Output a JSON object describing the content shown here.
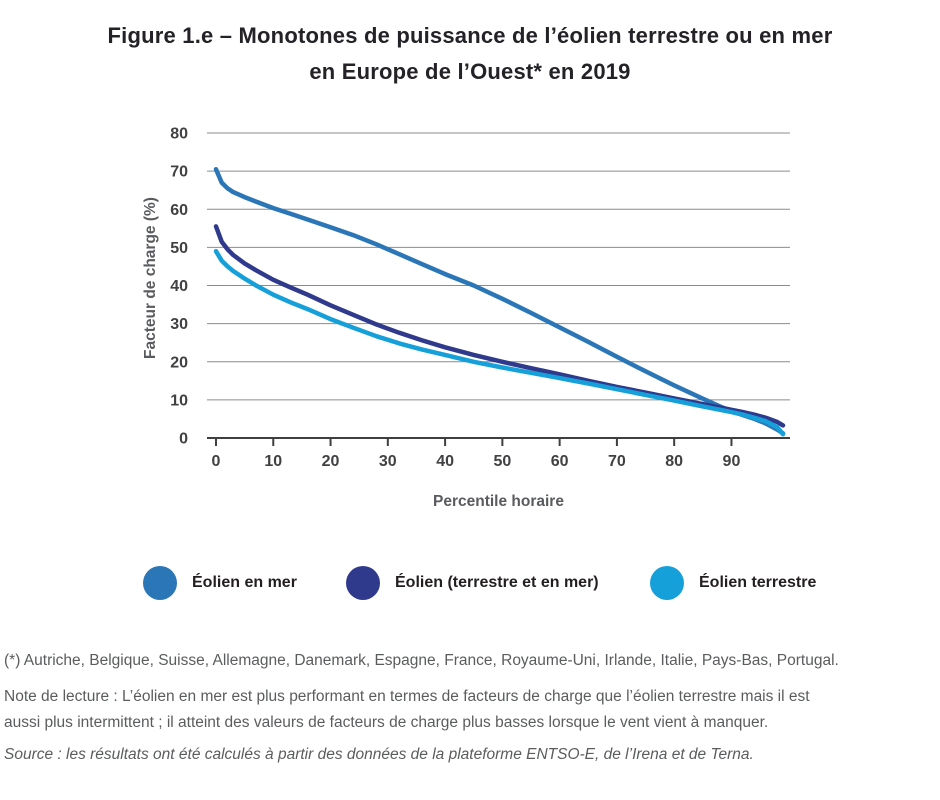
{
  "figure": {
    "title_line1": "Figure 1.e – Monotones de puissance de l’éolien terrestre ou en mer",
    "title_line2": "en Europe de l’Ouest* en 2019"
  },
  "chart_data": {
    "type": "line",
    "title": "Monotones de puissance de l’éolien terrestre ou en mer en Europe de l’Ouest en 2019",
    "xlabel": "Percentile horaire",
    "ylabel": "Facteur de charge (%)",
    "xlim": [
      0,
      99
    ],
    "ylim": [
      0,
      80
    ],
    "x_ticks": [
      0,
      10,
      20,
      30,
      40,
      50,
      60,
      70,
      80,
      90
    ],
    "y_ticks": [
      0,
      10,
      20,
      30,
      40,
      50,
      60,
      70,
      80
    ],
    "grid": "horizontal-only",
    "legend_position": "below-chart",
    "x": [
      0,
      1,
      2,
      3,
      5,
      7,
      10,
      13,
      16,
      20,
      24,
      28,
      32,
      36,
      40,
      45,
      50,
      55,
      60,
      65,
      70,
      75,
      80,
      85,
      88,
      90,
      92,
      94,
      96,
      98,
      99
    ],
    "series": [
      {
        "name": "Éolien en mer",
        "color": "#2b76b7",
        "values": [
          70.5,
          67,
          65.5,
          64.5,
          63.2,
          62,
          60.3,
          58.8,
          57.3,
          55.3,
          53.2,
          50.8,
          48.2,
          45.6,
          43,
          40,
          36.5,
          32.8,
          29,
          25.2,
          21.3,
          17.5,
          13.8,
          10.3,
          8.3,
          7,
          6,
          5,
          3.8,
          2.2,
          1.2
        ]
      },
      {
        "name": "Éolien (terrestre et en mer)",
        "color": "#2f3a8d",
        "values": [
          55.5,
          51.5,
          49.5,
          48,
          45.8,
          44,
          41.5,
          39.5,
          37.6,
          34.8,
          32.3,
          29.8,
          27.6,
          25.6,
          23.8,
          21.8,
          20,
          18.3,
          16.7,
          15,
          13.4,
          11.9,
          10.4,
          8.9,
          8,
          7.4,
          6.8,
          6.1,
          5.3,
          4.2,
          3.3
        ]
      },
      {
        "name": "Éolien terrestre",
        "color": "#16a0da",
        "values": [
          49,
          46.5,
          45,
          43.8,
          41.8,
          40,
          37.6,
          35.6,
          33.8,
          31.2,
          28.9,
          26.7,
          24.8,
          23.2,
          21.8,
          20,
          18.5,
          17.1,
          15.7,
          14.3,
          12.8,
          11.3,
          9.8,
          8.3,
          7.4,
          6.8,
          6.1,
          5.3,
          4.4,
          2.8,
          1
        ]
      }
    ]
  },
  "styles": {
    "gridline_color": "#8a8c8f",
    "axis_color": "#3f3f41",
    "tick_label_color": "#414042",
    "title_color": "#242226",
    "footnote_color": "#5b5c5e"
  },
  "footnotes": {
    "asterisk": "(*) Autriche, Belgique, Suisse, Allemagne, Danemark, Espagne, France, Royaume-Uni, Irlande, Italie, Pays-Bas, Portugal.",
    "note_line1": "Note de lecture : L’éolien en mer est plus performant en termes de facteurs de charge que l’éolien terrestre mais il est",
    "note_line2": "aussi plus intermittent ; il atteint des valeurs de facteurs de charge plus basses lorsque le vent vient à manquer.",
    "source": "Source : les résultats ont été calculés à partir des données de la plateforme ENTSO-E, de l’Irena et de Terna."
  }
}
